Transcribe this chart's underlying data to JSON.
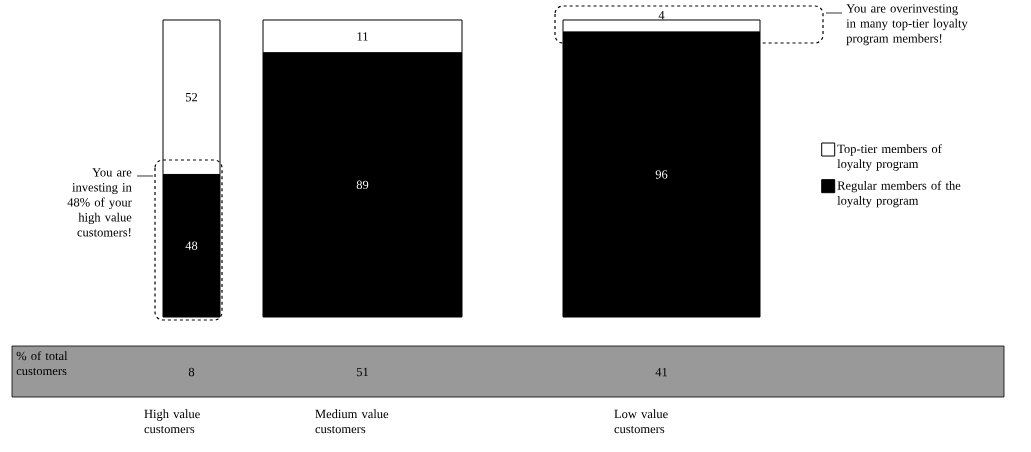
{
  "chart_data": [
    {
      "type": "bar",
      "stacked": true,
      "data_labels": true,
      "legend": "right",
      "categories": [
        "High value customers",
        "Medium value customers",
        "Low value customers"
      ],
      "series": [
        {
          "name": "Regular members of the loyalty program",
          "color": "#000000",
          "values": [
            48,
            89,
            96
          ]
        },
        {
          "name": "Top-tier members of loyalty program",
          "color": "#ffffff",
          "values": [
            52,
            11,
            4
          ]
        }
      ],
      "annotations": [
        "You are investing in 48% of your high value customers!",
        "You are overinvesting in many top-tier loyalty program members!"
      ]
    },
    {
      "type": "other",
      "title": "% of total customers",
      "color": "#999999",
      "values": [
        8,
        51,
        41
      ],
      "data_labels": true
    }
  ]
}
